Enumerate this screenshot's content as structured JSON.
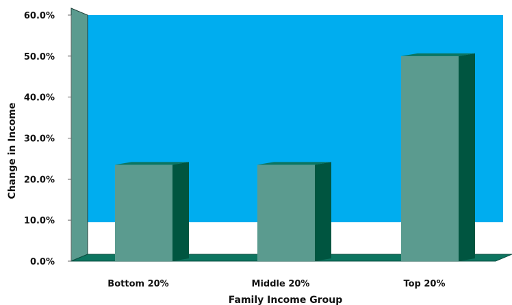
{
  "chart_data": {
    "type": "bar",
    "title": "",
    "xlabel": "Family Income Group",
    "ylabel": "Change in Income",
    "categories": [
      "Bottom 20%",
      "Middle 20%",
      "Top 20%"
    ],
    "values": [
      23.5,
      23.5,
      50.0
    ],
    "ylim": [
      0,
      60
    ],
    "yticks": [
      "0.0%",
      "10.0%",
      "20.0%",
      "30.0%",
      "40.0%",
      "50.0%",
      "60.0%"
    ],
    "grid": false,
    "legend": "none"
  },
  "colors": {
    "plot_background": "#00adef",
    "bar_front": "#5b9b8f",
    "bar_side": "#005540",
    "bar_top": "#0d7560",
    "floor": "#0d7560",
    "wall": "#5b9b8f"
  }
}
